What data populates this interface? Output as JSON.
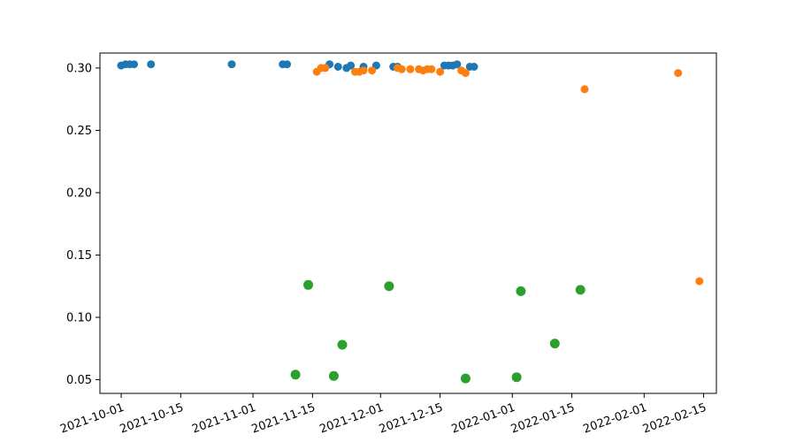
{
  "chart_data": {
    "type": "scatter",
    "title": "",
    "xlabel": "",
    "ylabel": "",
    "x_axis": {
      "kind": "date",
      "range": [
        "2021-09-26",
        "2022-02-18"
      ],
      "ticks": [
        "2021-10-01",
        "2021-10-15",
        "2021-11-01",
        "2021-11-15",
        "2021-12-01",
        "2021-12-15",
        "2022-01-01",
        "2022-01-15",
        "2022-02-01",
        "2022-02-15"
      ],
      "tick_rotation_deg": 20
    },
    "y_axis": {
      "range": [
        0.039,
        0.312
      ],
      "ticks": [
        0.05,
        0.1,
        0.15,
        0.2,
        0.25,
        0.3
      ],
      "tick_labels": [
        "0.05",
        "0.10",
        "0.15",
        "0.20",
        "0.25",
        "0.30"
      ]
    },
    "grid": false,
    "legend": "none",
    "series": [
      {
        "color": "#1f77b4",
        "points": [
          {
            "x": "2021-10-01",
            "y": 0.302
          },
          {
            "x": "2021-10-02",
            "y": 0.303
          },
          {
            "x": "2021-10-03",
            "y": 0.303
          },
          {
            "x": "2021-10-04",
            "y": 0.303
          },
          {
            "x": "2021-10-08",
            "y": 0.303
          },
          {
            "x": "2021-10-27",
            "y": 0.303
          },
          {
            "x": "2021-11-08",
            "y": 0.303
          },
          {
            "x": "2021-11-09",
            "y": 0.303
          },
          {
            "x": "2021-11-19",
            "y": 0.303
          },
          {
            "x": "2021-11-21",
            "y": 0.301
          },
          {
            "x": "2021-11-23",
            "y": 0.3
          },
          {
            "x": "2021-11-24",
            "y": 0.302
          },
          {
            "x": "2021-11-27",
            "y": 0.301
          },
          {
            "x": "2021-11-30",
            "y": 0.302
          },
          {
            "x": "2021-12-04",
            "y": 0.301
          },
          {
            "x": "2021-12-05",
            "y": 0.301
          },
          {
            "x": "2021-12-16",
            "y": 0.302
          },
          {
            "x": "2021-12-17",
            "y": 0.302
          },
          {
            "x": "2021-12-18",
            "y": 0.302
          },
          {
            "x": "2021-12-19",
            "y": 0.303
          },
          {
            "x": "2021-12-22",
            "y": 0.301
          },
          {
            "x": "2021-12-23",
            "y": 0.301
          }
        ]
      },
      {
        "color": "#ff7f0e",
        "points": [
          {
            "x": "2021-11-16",
            "y": 0.297
          },
          {
            "x": "2021-11-17",
            "y": 0.3
          },
          {
            "x": "2021-11-18",
            "y": 0.3
          },
          {
            "x": "2021-11-25",
            "y": 0.297
          },
          {
            "x": "2021-11-26",
            "y": 0.297
          },
          {
            "x": "2021-11-27",
            "y": 0.298
          },
          {
            "x": "2021-11-29",
            "y": 0.298
          },
          {
            "x": "2021-12-05",
            "y": 0.3
          },
          {
            "x": "2021-12-06",
            "y": 0.299
          },
          {
            "x": "2021-12-08",
            "y": 0.299
          },
          {
            "x": "2021-12-10",
            "y": 0.299
          },
          {
            "x": "2021-12-11",
            "y": 0.298
          },
          {
            "x": "2021-12-12",
            "y": 0.299
          },
          {
            "x": "2021-12-13",
            "y": 0.299
          },
          {
            "x": "2021-12-15",
            "y": 0.297
          },
          {
            "x": "2021-12-20",
            "y": 0.298
          },
          {
            "x": "2021-12-21",
            "y": 0.296
          },
          {
            "x": "2022-01-18",
            "y": 0.283
          },
          {
            "x": "2022-02-09",
            "y": 0.296
          },
          {
            "x": "2022-02-14",
            "y": 0.129
          }
        ]
      },
      {
        "color": "#2ca02c",
        "points": [
          {
            "x": "2021-11-11",
            "y": 0.054
          },
          {
            "x": "2021-11-14",
            "y": 0.126
          },
          {
            "x": "2021-11-20",
            "y": 0.053
          },
          {
            "x": "2021-11-22",
            "y": 0.078
          },
          {
            "x": "2021-12-03",
            "y": 0.125
          },
          {
            "x": "2021-12-21",
            "y": 0.051
          },
          {
            "x": "2022-01-02",
            "y": 0.052
          },
          {
            "x": "2022-01-03",
            "y": 0.121
          },
          {
            "x": "2022-01-11",
            "y": 0.079
          },
          {
            "x": "2022-01-17",
            "y": 0.122
          }
        ]
      }
    ]
  }
}
